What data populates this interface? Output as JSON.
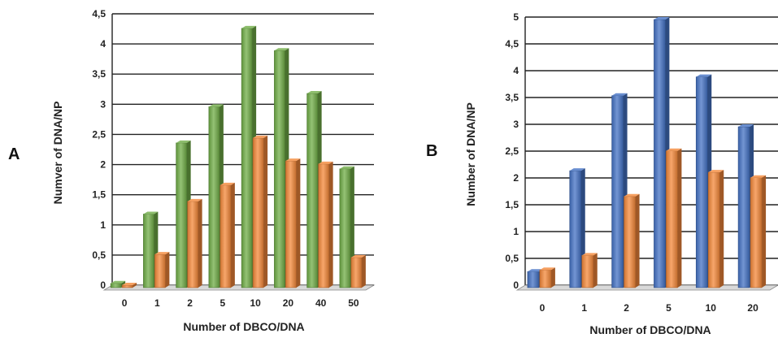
{
  "chart_data": [
    {
      "type": "bar",
      "panel_label": "A",
      "categories": [
        "0",
        "1",
        "2",
        "5",
        "10",
        "20",
        "40",
        "50"
      ],
      "series": [
        {
          "color": "#70AD47",
          "values": [
            0.07,
            1.22,
            2.4,
            3.0,
            4.3,
            3.93,
            3.22,
            1.97
          ]
        },
        {
          "color": "#F4883A",
          "values": [
            0.04,
            0.55,
            1.43,
            1.7,
            2.48,
            2.1,
            2.05,
            0.5
          ]
        }
      ],
      "xlabel": "Number of DBCO/DNA",
      "ylabel": "Numver of DNA/NP",
      "yticks": [
        "0",
        "0,5",
        "1",
        "1,5",
        "2",
        "2,5",
        "3",
        "3,5",
        "4",
        "4,5"
      ],
      "ylim": [
        0,
        4.5
      ],
      "grid": true
    },
    {
      "type": "bar",
      "panel_label": "B",
      "categories": [
        "0",
        "1",
        "2",
        "5",
        "10",
        "20"
      ],
      "series": [
        {
          "color": "#4472C4",
          "values": [
            0.3,
            2.18,
            3.58,
            5.0,
            3.93,
            3.0
          ]
        },
        {
          "color": "#F4883A",
          "values": [
            0.33,
            0.6,
            1.7,
            2.55,
            2.15,
            2.05
          ]
        }
      ],
      "xlabel": "Number of DBCO/DNA",
      "ylabel": "Number of DNA/NP",
      "yticks": [
        "0",
        "0,5",
        "1",
        "1,5",
        "2",
        "2,5",
        "3",
        "3,5",
        "4",
        "4,5",
        "5"
      ],
      "ylim": [
        0,
        5
      ],
      "grid": true
    }
  ]
}
